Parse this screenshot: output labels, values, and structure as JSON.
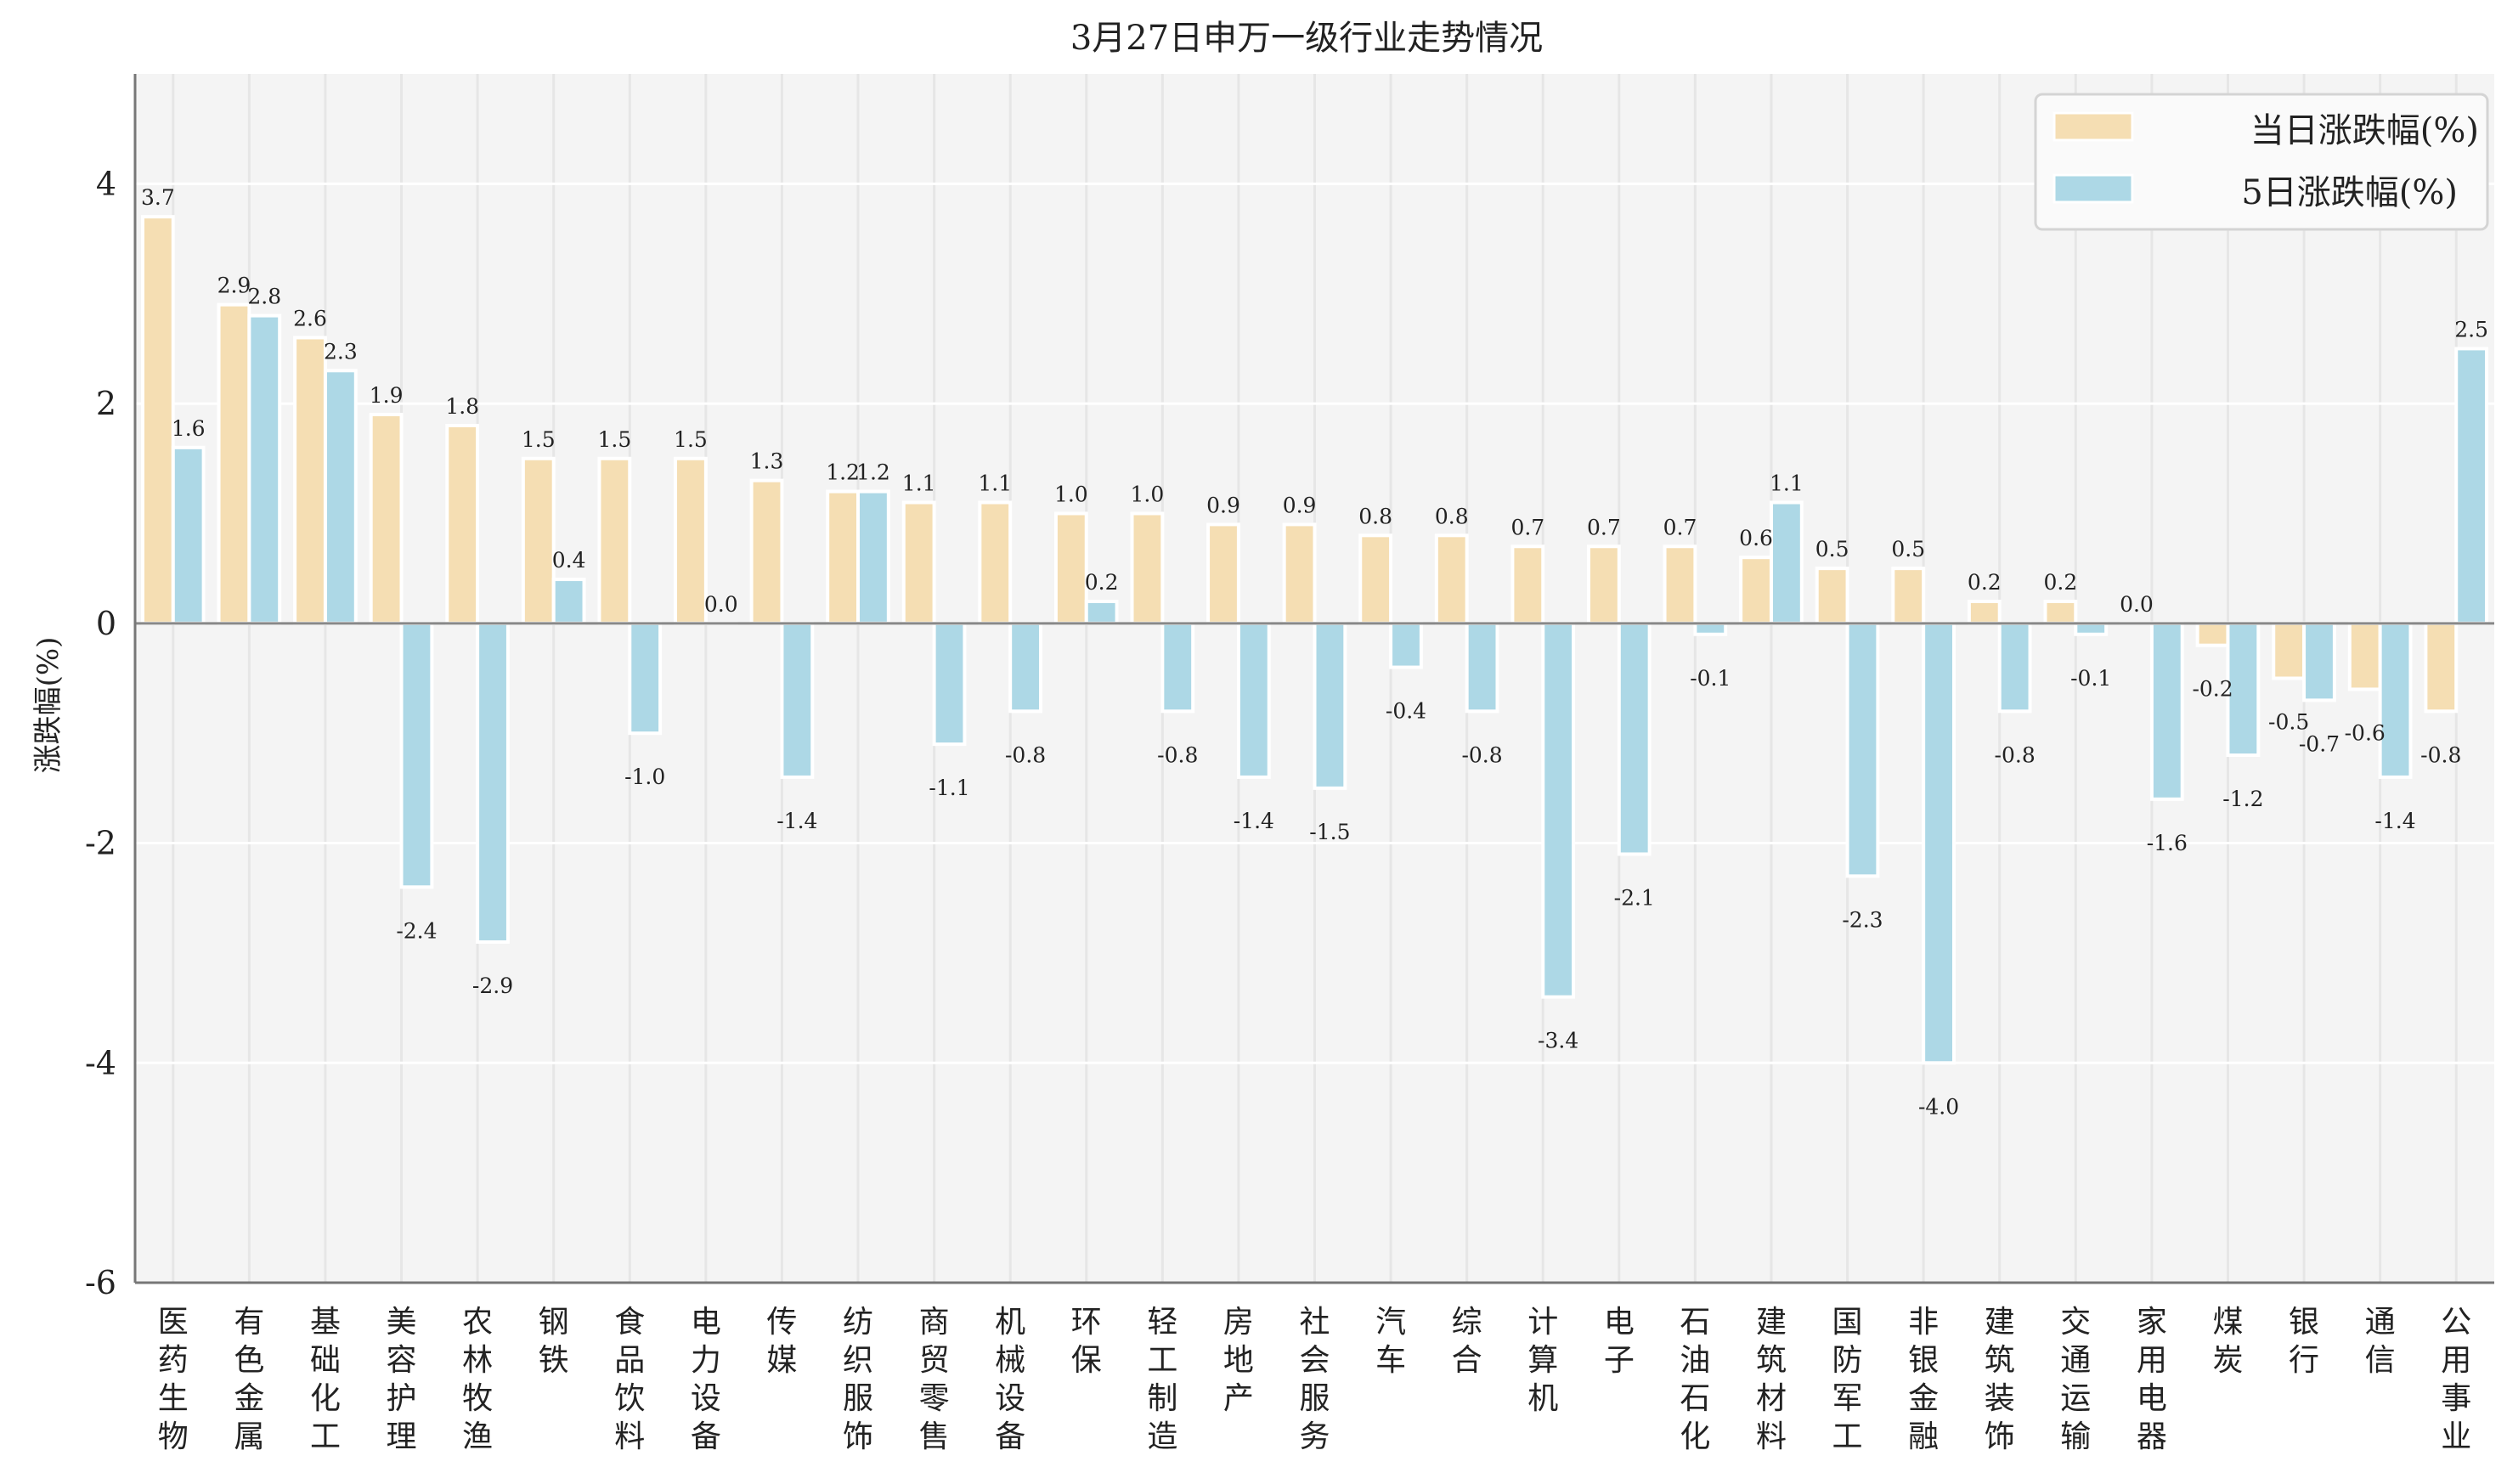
{
  "chart_data": {
    "type": "bar",
    "title": "3月27日申万一级行业走势情况",
    "xlabel": "",
    "ylabel": "涨跌幅(%)",
    "ylim": [
      -6,
      5
    ],
    "yticks": [
      4,
      2,
      0,
      -2,
      -4,
      -6
    ],
    "grid": true,
    "legend_position": "top-right",
    "categories": [
      "医药生物",
      "有色金属",
      "基础化工",
      "美容护理",
      "农林牧渔",
      "钢铁",
      "食品饮料",
      "电力设备",
      "传媒",
      "纺织服饰",
      "商贸零售",
      "机械设备",
      "环保",
      "轻工制造",
      "房地产",
      "社会服务",
      "汽车",
      "综合",
      "计算机",
      "电子",
      "石油石化",
      "建筑材料",
      "国防军工",
      "非银金融",
      "建筑装饰",
      "交通运输",
      "家用电器",
      "煤炭",
      "银行",
      "通信",
      "公用事业"
    ],
    "series": [
      {
        "name": "当日涨跌幅(%)",
        "color": "#f5deb3",
        "values": [
          3.7,
          2.9,
          2.6,
          1.9,
          1.8,
          1.5,
          1.5,
          1.5,
          1.3,
          1.2,
          1.1,
          1.1,
          1.0,
          1.0,
          0.9,
          0.9,
          0.8,
          0.8,
          0.7,
          0.7,
          0.7,
          0.6,
          0.5,
          0.5,
          0.2,
          0.2,
          0.0,
          -0.2,
          -0.5,
          -0.6,
          -0.8
        ]
      },
      {
        "name": "5日涨跌幅(%)",
        "color": "#add8e6",
        "values": [
          1.6,
          2.8,
          2.3,
          -2.4,
          -2.9,
          0.4,
          -1.0,
          0.0,
          -1.4,
          1.2,
          -1.1,
          -0.8,
          0.2,
          -0.8,
          -1.4,
          -1.5,
          -0.4,
          -0.8,
          -3.4,
          -2.1,
          -0.1,
          1.1,
          -2.3,
          -4.0,
          -0.8,
          -0.1,
          -1.6,
          -1.2,
          -0.7,
          -1.4,
          2.5
        ]
      }
    ]
  }
}
